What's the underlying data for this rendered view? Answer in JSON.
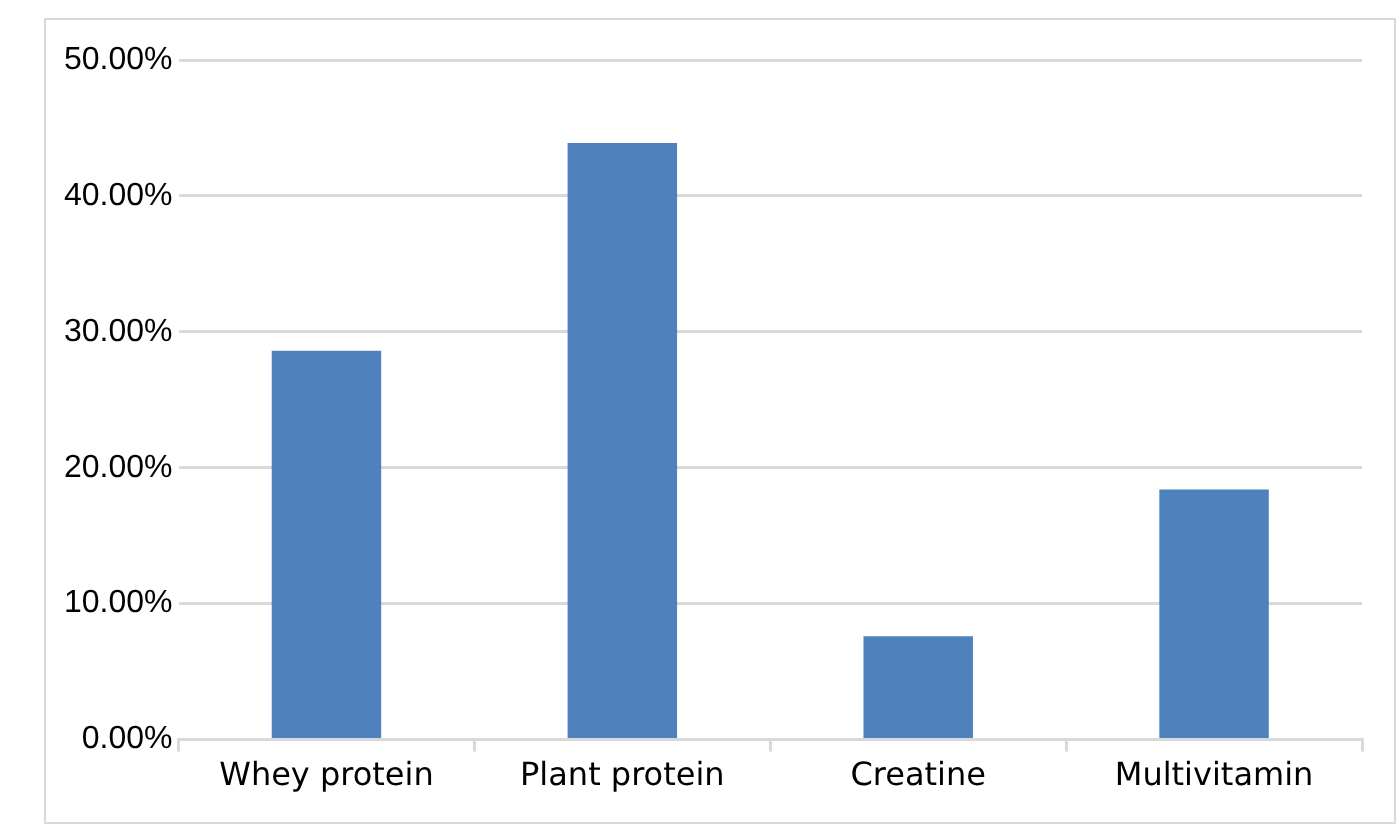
{
  "chart_data": {
    "type": "bar",
    "categories": [
      "Whey protein",
      "Plant protein",
      "Creatine",
      "Multivitamin"
    ],
    "values": [
      28.6,
      43.9,
      7.6,
      18.4
    ],
    "color": "#4f81bd",
    "ylim": [
      0,
      50
    ],
    "yticks": [
      {
        "value": 0,
        "label": "0.00%"
      },
      {
        "value": 10,
        "label": "10.00%"
      },
      {
        "value": 20,
        "label": "20.00%"
      },
      {
        "value": 30,
        "label": "30.00%"
      },
      {
        "value": 40,
        "label": "40.00%"
      },
      {
        "value": 50,
        "label": "50.00%"
      }
    ],
    "grid": "y",
    "legend": false
  }
}
